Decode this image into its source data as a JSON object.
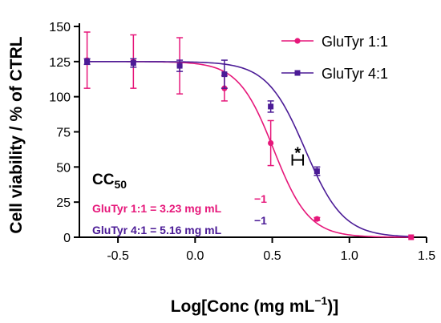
{
  "chart_data": {
    "type": "scatter",
    "xlabel_prefix": "Log[Conc (mg mL",
    "xlabel_sup": "−1",
    "xlabel_suffix": ")]",
    "ylabel": "Cell viability / % of CTRL",
    "xlim": [
      -0.75,
      1.5
    ],
    "ylim": [
      0,
      150
    ],
    "x_ticks": [
      -0.5,
      0.0,
      0.5,
      1.0,
      1.5
    ],
    "x_tick_labels": [
      "-0.5",
      "0.0",
      "0.5",
      "1.0",
      "1.5"
    ],
    "y_ticks": [
      0,
      25,
      50,
      75,
      100,
      125,
      150
    ],
    "y_tick_labels": [
      "0",
      "25",
      "50",
      "75",
      "100",
      "125",
      "150"
    ],
    "legend_position": "top-right",
    "series": [
      {
        "name": "GluTyr 1:1",
        "color": "#e6177a",
        "marker": "circle",
        "x": [
          -0.7,
          -0.4,
          -0.1,
          0.19,
          0.49,
          0.79
        ],
        "y": [
          126,
          125,
          122,
          106,
          67,
          13
        ],
        "err": [
          20,
          19,
          20,
          9,
          16,
          1
        ],
        "fit": {
          "top": 125,
          "bottom": 0,
          "logEC50": 0.509,
          "hill": 3.8
        }
      },
      {
        "name": "GluTyr 4:1",
        "color": "#4b1b96",
        "marker": "square",
        "x": [
          -0.7,
          -0.4,
          -0.1,
          0.19,
          0.49,
          0.79
        ],
        "y": [
          125,
          124,
          122,
          116,
          93,
          47
        ],
        "err": [
          2,
          3,
          4,
          10,
          4,
          3
        ],
        "fit": {
          "top": 125,
          "bottom": 0,
          "logEC50": 0.713,
          "hill": 3.5
        }
      }
    ],
    "end_point": {
      "x": 1.4,
      "y": 0,
      "color": "#e6177a"
    },
    "significance_bracket": {
      "x0": 0.63,
      "x1": 0.7,
      "y": 55,
      "label": "*"
    },
    "annotation": {
      "title": "CC",
      "title_sub": "50",
      "lines": [
        {
          "text": "GluTyr 1:1 = 3.23 mg mL",
          "sup": "−1",
          "color": "#e6177a"
        },
        {
          "text": "GluTyr 4:1 = 5.16 mg mL",
          "sup": "−1",
          "color": "#4b1b96"
        }
      ]
    }
  }
}
